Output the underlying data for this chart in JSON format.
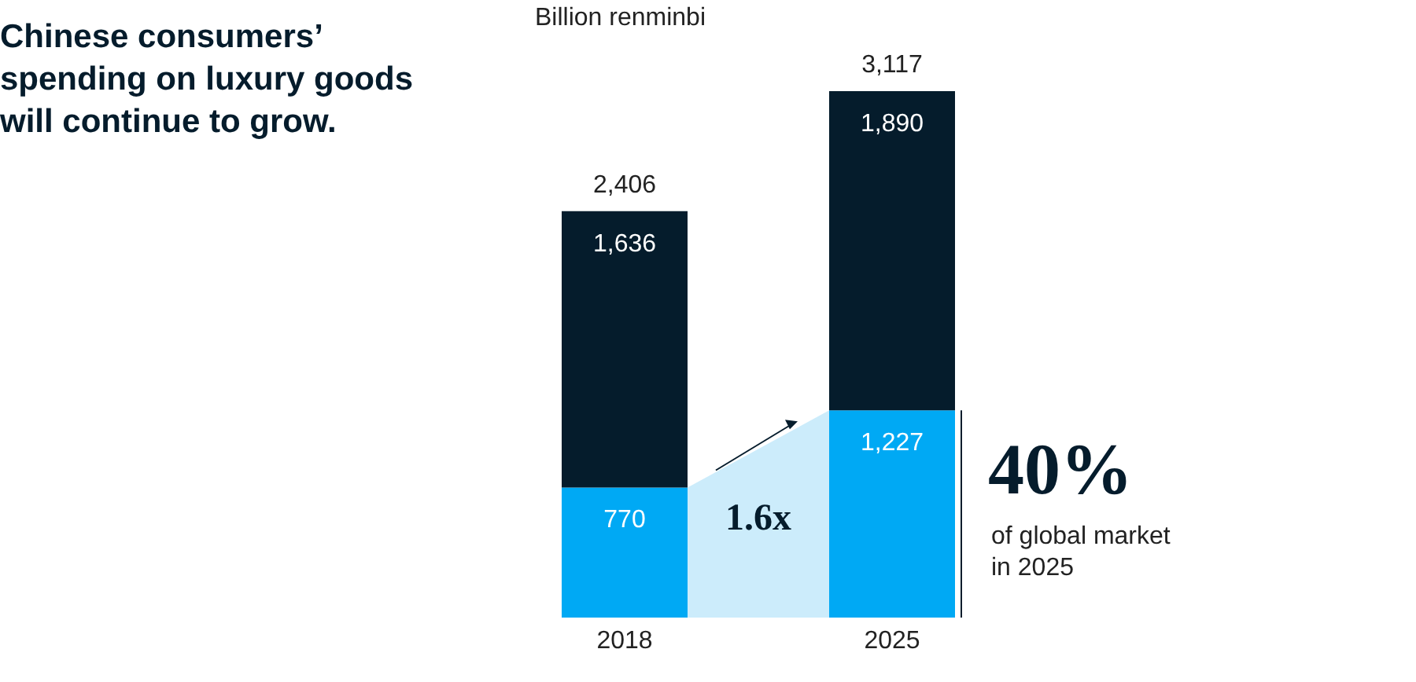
{
  "chart_data": {
    "type": "bar",
    "title": "Chinese consumers’ spending on luxury goods will continue to grow.",
    "ylabel": "Billion renminbi",
    "categories": [
      "2018",
      "2025"
    ],
    "stacked": true,
    "totals": [
      "2,406",
      "3,117"
    ],
    "series": [
      {
        "color": "#00a9f4",
        "values": [
          770,
          1227
        ],
        "value_labels": [
          "770",
          "1,227"
        ]
      },
      {
        "color": "#051c2c",
        "values": [
          1636,
          1890
        ],
        "value_labels": [
          "1,636",
          "1,890"
        ]
      }
    ],
    "annotations": [
      "1.6x",
      "40%",
      "of global market in 2025"
    ],
    "grid": false,
    "legend": false
  }
}
